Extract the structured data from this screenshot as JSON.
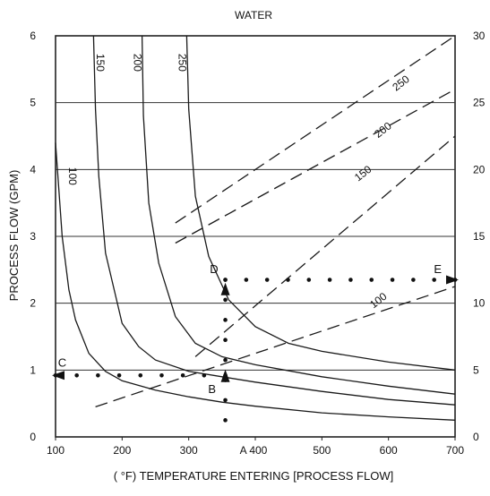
{
  "chart_data": {
    "type": "line",
    "title": "WATER",
    "xlabel": "( °F) TEMPERATURE ENTERING [PROCESS FLOW]",
    "ylabel": "PROCESS FLOW (GPM)",
    "xlim": [
      100,
      700
    ],
    "ylim": [
      0,
      6
    ],
    "ylim_right": [
      0,
      30
    ],
    "x_ticks": [
      100,
      200,
      300,
      400,
      500,
      600,
      700
    ],
    "x_tick_labels": [
      "100",
      "200",
      "300",
      "A 400",
      "500",
      "600",
      "700"
    ],
    "y_ticks": [
      0,
      1,
      2,
      3,
      4,
      5,
      6
    ],
    "y_right_ticks": [
      0,
      5,
      10,
      15,
      20,
      25,
      30
    ],
    "grid": "horizontal",
    "series": [
      {
        "name": "100",
        "style": "solid",
        "label_pos": [
          120,
          3.9
        ],
        "points": [
          [
            100,
            4.4
          ],
          [
            110,
            3.0
          ],
          [
            120,
            2.2
          ],
          [
            130,
            1.75
          ],
          [
            150,
            1.25
          ],
          [
            175,
            0.98
          ],
          [
            200,
            0.84
          ],
          [
            250,
            0.7
          ],
          [
            300,
            0.6
          ],
          [
            350,
            0.52
          ],
          [
            400,
            0.46
          ],
          [
            500,
            0.36
          ],
          [
            600,
            0.3
          ],
          [
            700,
            0.25
          ]
        ]
      },
      {
        "name": "150",
        "style": "solid",
        "label_pos": [
          162,
          5.6
        ],
        "points": [
          [
            157,
            6.0
          ],
          [
            160,
            4.9
          ],
          [
            165,
            3.9
          ],
          [
            175,
            2.75
          ],
          [
            200,
            1.7
          ],
          [
            225,
            1.35
          ],
          [
            250,
            1.15
          ],
          [
            300,
            0.98
          ],
          [
            350,
            0.9
          ],
          [
            400,
            0.82
          ],
          [
            500,
            0.68
          ],
          [
            600,
            0.56
          ],
          [
            700,
            0.48
          ]
        ]
      },
      {
        "name": "200",
        "style": "solid",
        "label_pos": [
          218,
          5.6
        ],
        "points": [
          [
            230,
            6.0
          ],
          [
            232,
            4.8
          ],
          [
            240,
            3.5
          ],
          [
            255,
            2.6
          ],
          [
            280,
            1.8
          ],
          [
            310,
            1.4
          ],
          [
            350,
            1.2
          ],
          [
            400,
            1.08
          ],
          [
            500,
            0.9
          ],
          [
            600,
            0.76
          ],
          [
            700,
            0.64
          ]
        ]
      },
      {
        "name": "250",
        "style": "solid",
        "label_pos": [
          285,
          5.6
        ],
        "points": [
          [
            297,
            6.0
          ],
          [
            300,
            4.9
          ],
          [
            310,
            3.6
          ],
          [
            330,
            2.7
          ],
          [
            360,
            2.05
          ],
          [
            400,
            1.65
          ],
          [
            450,
            1.4
          ],
          [
            500,
            1.28
          ],
          [
            600,
            1.12
          ],
          [
            700,
            1.0
          ]
        ]
      },
      {
        "name": "100",
        "style": "dashed",
        "label_pos": [
          588,
          2.0
        ],
        "points": [
          [
            160,
            0.45
          ],
          [
            700,
            2.25
          ]
        ]
      },
      {
        "name": "150",
        "style": "dashed",
        "label_pos": [
          565,
          3.9
        ],
        "points": [
          [
            310,
            1.2
          ],
          [
            700,
            4.5
          ]
        ]
      },
      {
        "name": "200",
        "style": "dashed",
        "label_pos": [
          595,
          4.55
        ],
        "points": [
          [
            280,
            2.9
          ],
          [
            700,
            5.2
          ]
        ]
      },
      {
        "name": "250",
        "style": "dashed",
        "label_pos": [
          622,
          5.25
        ],
        "points": [
          [
            280,
            3.2
          ],
          [
            700,
            6.0
          ]
        ]
      }
    ],
    "annotations": [
      {
        "text": "A",
        "x": 355,
        "y": 0
      },
      {
        "text": "B",
        "x": 335,
        "y": 0.72
      },
      {
        "text": "C",
        "x": 110,
        "y": 1.12
      },
      {
        "text": "D",
        "x": 338,
        "y": 2.52
      },
      {
        "text": "E",
        "x": 674,
        "y": 2.52
      }
    ],
    "dotted_paths": [
      {
        "from": [
          355,
          0.25
        ],
        "to": [
          355,
          2.35
        ]
      },
      {
        "from": [
          355,
          0.92
        ],
        "to": [
          100,
          0.92
        ]
      },
      {
        "from": [
          355,
          2.35
        ],
        "to": [
          700,
          2.35
        ]
      }
    ],
    "arrows": [
      {
        "at": [
          355,
          0.9
        ],
        "dir": "up"
      },
      {
        "at": [
          355,
          2.2
        ],
        "dir": "up"
      },
      {
        "at": [
          100,
          0.92
        ],
        "dir": "left"
      },
      {
        "at": [
          700,
          2.35
        ],
        "dir": "right"
      }
    ]
  }
}
